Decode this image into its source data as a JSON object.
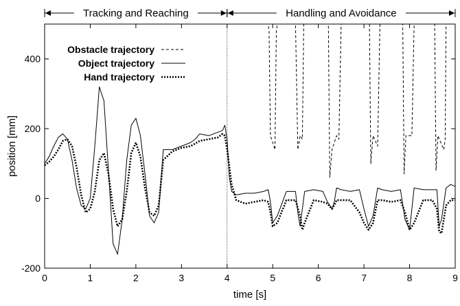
{
  "chart_data": {
    "type": "line",
    "xlabel": "time [s]",
    "ylabel": "position [mm]",
    "xlim": [
      0,
      9
    ],
    "ylim": [
      -200,
      500
    ],
    "xticks": [
      0,
      1,
      2,
      3,
      4,
      5,
      6,
      7,
      8,
      9
    ],
    "yticks": [
      -200,
      0,
      200,
      400
    ],
    "grid": false,
    "legend_position": "top-left",
    "phase_divider_x": 4,
    "phases": [
      {
        "label": "Tracking and Reaching",
        "x_start": 0,
        "x_end": 4
      },
      {
        "label": "Handling and Avoidance",
        "x_start": 4,
        "x_end": 9
      }
    ],
    "series": [
      {
        "name": "Obstacle trajectory",
        "style": "dashed-thin",
        "color": "#000000",
        "x": [
          4.0,
          4.9,
          4.92,
          4.95,
          5.0,
          5.05,
          5.08,
          5.1,
          5.3,
          5.5,
          5.55,
          5.6,
          5.65,
          5.68,
          6.22,
          6.25,
          6.3,
          6.4,
          6.45,
          6.5,
          7.12,
          7.15,
          7.2,
          7.3,
          7.35,
          7.4,
          7.85,
          7.88,
          7.92,
          8.05,
          8.1,
          8.15,
          8.55,
          8.58,
          8.62,
          8.75,
          8.78,
          8.8,
          9.0
        ],
        "y": [
          500,
          500,
          480,
          180,
          160,
          140,
          480,
          500,
          500,
          500,
          140,
          180,
          170,
          500,
          500,
          60,
          140,
          180,
          170,
          500,
          500,
          100,
          180,
          150,
          500,
          500,
          500,
          70,
          180,
          180,
          500,
          500,
          500,
          80,
          180,
          140,
          170,
          500,
          500
        ]
      },
      {
        "name": "Object trajectory",
        "style": "solid-thin",
        "color": "#000000",
        "x": [
          0.0,
          0.1,
          0.2,
          0.3,
          0.4,
          0.5,
          0.6,
          0.7,
          0.8,
          0.9,
          1.0,
          1.1,
          1.2,
          1.3,
          1.4,
          1.5,
          1.6,
          1.7,
          1.8,
          1.9,
          2.0,
          2.1,
          2.2,
          2.3,
          2.4,
          2.5,
          2.6,
          2.8,
          3.0,
          3.2,
          3.3,
          3.4,
          3.6,
          3.8,
          3.9,
          3.95,
          4.0,
          4.05,
          4.1,
          4.2,
          4.4,
          4.6,
          4.8,
          4.9,
          4.95,
          5.0,
          5.1,
          5.3,
          5.5,
          5.55,
          5.6,
          5.7,
          5.9,
          6.1,
          6.2,
          6.3,
          6.35,
          6.4,
          6.5,
          6.7,
          6.9,
          7.0,
          7.1,
          7.2,
          7.3,
          7.4,
          7.6,
          7.8,
          7.9,
          8.0,
          8.1,
          8.3,
          8.5,
          8.6,
          8.65,
          8.7,
          8.8,
          8.9,
          9.0
        ],
        "y": [
          100,
          120,
          150,
          175,
          185,
          170,
          110,
          30,
          -20,
          -30,
          0,
          150,
          320,
          280,
          80,
          -130,
          -160,
          -60,
          110,
          210,
          230,
          180,
          70,
          -50,
          -70,
          -40,
          140,
          140,
          150,
          160,
          170,
          185,
          180,
          190,
          195,
          210,
          170,
          60,
          20,
          10,
          15,
          15,
          20,
          25,
          -10,
          -70,
          -50,
          20,
          20,
          -40,
          -80,
          20,
          25,
          20,
          -10,
          -30,
          -10,
          30,
          25,
          20,
          25,
          -30,
          -80,
          -50,
          30,
          25,
          20,
          25,
          -60,
          -90,
          30,
          25,
          25,
          25,
          -80,
          -60,
          30,
          40,
          35
        ]
      },
      {
        "name": "Hand trajectory",
        "style": "dotted-thick",
        "color": "#000000",
        "x": [
          0.0,
          0.1,
          0.2,
          0.3,
          0.4,
          0.5,
          0.6,
          0.7,
          0.8,
          0.9,
          1.0,
          1.1,
          1.2,
          1.3,
          1.4,
          1.5,
          1.6,
          1.7,
          1.8,
          1.9,
          2.0,
          2.1,
          2.2,
          2.3,
          2.4,
          2.5,
          2.6,
          2.8,
          3.0,
          3.2,
          3.4,
          3.6,
          3.8,
          3.9,
          3.95,
          4.0,
          4.1,
          4.2,
          4.4,
          4.6,
          4.8,
          4.9,
          4.95,
          5.0,
          5.1,
          5.3,
          5.5,
          5.6,
          5.65,
          5.7,
          5.9,
          6.1,
          6.2,
          6.3,
          6.35,
          6.4,
          6.5,
          6.7,
          6.9,
          7.0,
          7.1,
          7.2,
          7.3,
          7.4,
          7.6,
          7.8,
          7.9,
          8.0,
          8.1,
          8.3,
          8.5,
          8.6,
          8.65,
          8.7,
          8.8,
          8.9,
          9.0
        ],
        "y": [
          95,
          105,
          120,
          140,
          165,
          170,
          150,
          90,
          10,
          -40,
          -30,
          20,
          110,
          130,
          70,
          -30,
          -80,
          -60,
          20,
          130,
          160,
          120,
          30,
          -40,
          -50,
          -20,
          110,
          135,
          145,
          150,
          165,
          170,
          175,
          185,
          180,
          140,
          40,
          -5,
          -15,
          -10,
          -5,
          -10,
          -40,
          -80,
          -70,
          -5,
          -5,
          -50,
          -90,
          -70,
          -5,
          -10,
          -15,
          -30,
          -20,
          -5,
          -5,
          -5,
          -40,
          -70,
          -90,
          -70,
          -5,
          -5,
          -10,
          -5,
          -40,
          -90,
          -70,
          -5,
          -5,
          -30,
          -95,
          -100,
          -20,
          -5,
          -5
        ]
      }
    ]
  }
}
